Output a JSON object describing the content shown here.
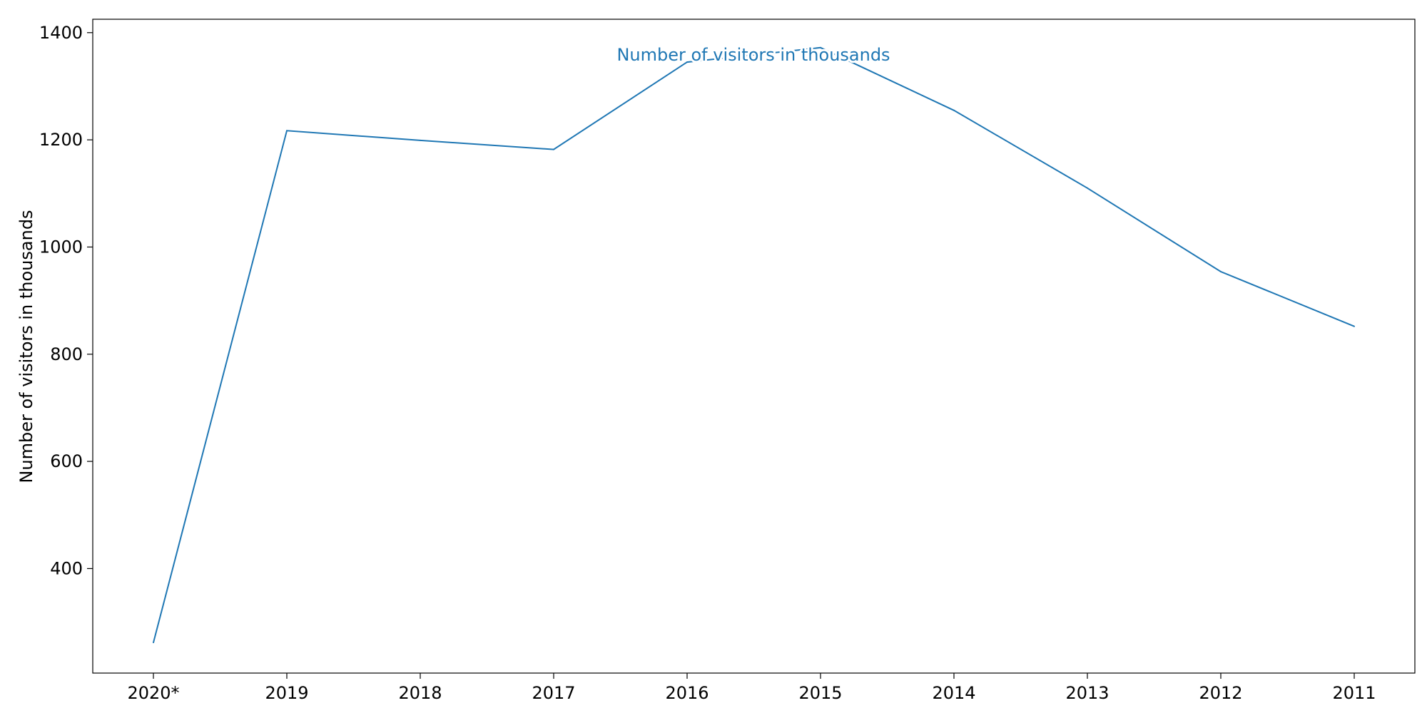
{
  "chart_data": {
    "type": "line",
    "title": "",
    "xlabel": "",
    "ylabel": "Number of visitors in thousands",
    "categories": [
      "2020*",
      "2019",
      "2018",
      "2017",
      "2016",
      "2015",
      "2014",
      "2013",
      "2012",
      "2011"
    ],
    "series": [
      {
        "name": "Number of visitors in thousands",
        "values": [
          262,
          1217,
          1199,
          1182,
          1345,
          1372,
          1255,
          1110,
          954,
          852
        ],
        "color": "#1f77b4"
      }
    ],
    "yticks": [
      400,
      600,
      800,
      1000,
      1200,
      1400
    ],
    "ylim": [
      205,
      1425
    ],
    "grid": false,
    "series_label_placement": "top-center"
  }
}
